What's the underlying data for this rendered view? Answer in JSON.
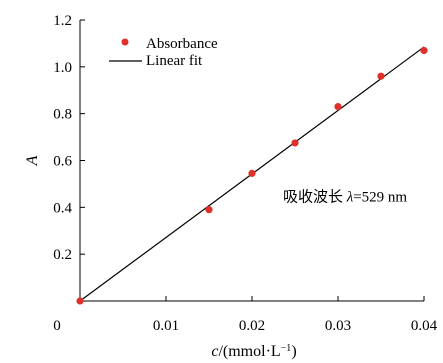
{
  "chart_data": {
    "type": "scatter",
    "title": "",
    "xlabel": "c/(mmol·L⁻¹)",
    "xlabel_parts": {
      "symbol": "c",
      "unit_start": "/(mmol·L",
      "unit_sup": "−1",
      "unit_end": ")"
    },
    "ylabel": "A",
    "xlim": [
      0,
      0.04
    ],
    "ylim": [
      0,
      1.2
    ],
    "x_ticks": [
      0,
      0.01,
      0.02,
      0.03,
      0.04
    ],
    "x_tick_labels": [
      "0",
      "0.01",
      "0.02",
      "0.03",
      "0.04"
    ],
    "y_ticks": [
      0.2,
      0.4,
      0.6,
      0.8,
      1.0,
      1.2
    ],
    "y_tick_labels": [
      "0.2",
      "0.4",
      "0.6",
      "0.8",
      "1.0",
      "1.2"
    ],
    "grid": false,
    "legend_position": "top-left",
    "series": [
      {
        "name": "Absorbance",
        "kind": "scatter",
        "color": "#e0302a",
        "x": [
          0,
          0.015,
          0.02,
          0.025,
          0.03,
          0.035,
          0.04
        ],
        "y": [
          0,
          0.39,
          0.545,
          0.675,
          0.83,
          0.96,
          1.07
        ]
      },
      {
        "name": "Linear fit",
        "kind": "line",
        "color": "#000000",
        "x": [
          0,
          0.04
        ],
        "y": [
          0,
          1.085
        ]
      }
    ],
    "annotation": {
      "prefix": "吸收波长 ",
      "symbol": "λ",
      "value": "=529 nm",
      "anchor": {
        "x": 0.0236,
        "y": 0.425
      }
    }
  }
}
